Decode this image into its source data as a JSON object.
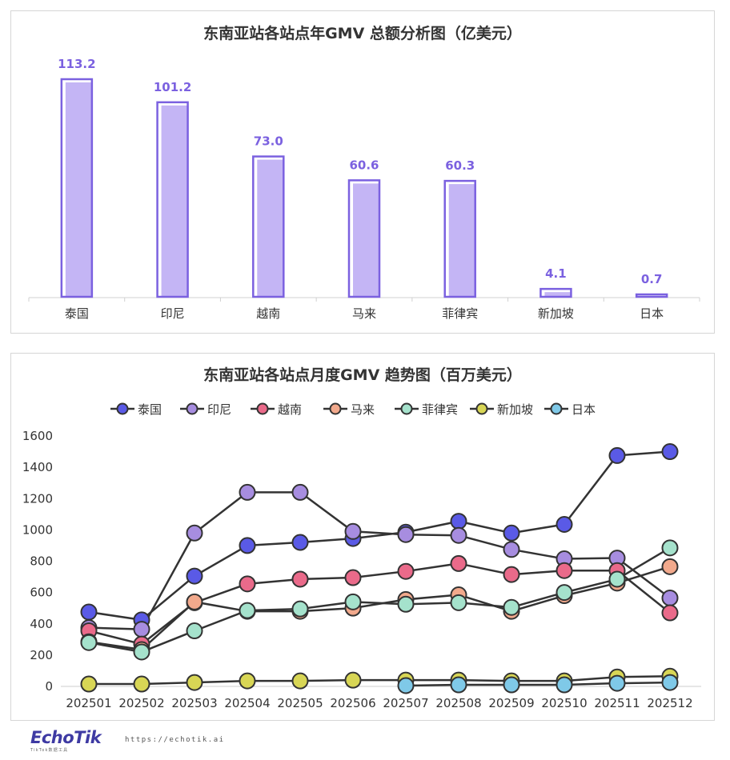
{
  "charts": {
    "bar": {
      "title": "东南亚站各站点年GMV 总额分析图（亿美元）"
    },
    "line": {
      "title": "东南亚站各站点月度GMV 趋势图（百万美元）"
    }
  },
  "chart_data": [
    {
      "type": "bar",
      "title": "东南亚站各站点年GMV 总额分析图（亿美元）",
      "categories": [
        "泰国",
        "印尼",
        "越南",
        "马来",
        "菲律宾",
        "新加坡",
        "日本"
      ],
      "values": [
        113.2,
        101.2,
        73.0,
        60.6,
        60.3,
        4.1,
        0.7
      ],
      "value_labels": [
        "113.2",
        "101.2",
        "73.0",
        "60.6",
        "60.3",
        "4.1",
        "0.7"
      ],
      "ylim": [
        0,
        113.2
      ],
      "grid": false,
      "colors": {
        "fill": "#c4b5f5",
        "stroke": "#7b61e0",
        "label": "#7b61e0"
      }
    },
    {
      "type": "line",
      "title": "东南亚站各站点月度GMV 趋势图（百万美元）",
      "x": [
        "202501",
        "202502",
        "202503",
        "202504",
        "202505",
        "202506",
        "202507",
        "202508",
        "202509",
        "202510",
        "202511",
        "202512"
      ],
      "ylim": [
        0,
        1600
      ],
      "yticks": [
        "0",
        "200",
        "400",
        "600",
        "800",
        "1000",
        "1200",
        "1400",
        "1600"
      ],
      "legend_position": "top",
      "grid": false,
      "series": [
        {
          "name": "泰国",
          "color": "#5a5ae6",
          "values": [
            470,
            420,
            700,
            895,
            915,
            940,
            980,
            1050,
            975,
            1030,
            1470,
            1495
          ]
        },
        {
          "name": "印尼",
          "color": "#a78de0",
          "values": [
            370,
            360,
            975,
            1235,
            1235,
            985,
            965,
            960,
            870,
            810,
            815,
            560
          ]
        },
        {
          "name": "越南",
          "color": "#ea6a8a",
          "values": [
            350,
            265,
            530,
            650,
            680,
            690,
            730,
            780,
            710,
            735,
            735,
            465
          ]
        },
        {
          "name": "马来",
          "color": "#f2a98c",
          "values": [
            280,
            230,
            535,
            475,
            475,
            495,
            550,
            580,
            475,
            575,
            655,
            760
          ]
        },
        {
          "name": "菲律宾",
          "color": "#a5e2cc",
          "values": [
            275,
            215,
            350,
            480,
            490,
            535,
            520,
            530,
            500,
            595,
            680,
            880
          ]
        },
        {
          "name": "新加坡",
          "color": "#d8d655",
          "values": [
            10,
            10,
            20,
            30,
            30,
            35,
            35,
            35,
            30,
            30,
            55,
            60
          ]
        },
        {
          "name": "日本",
          "color": "#7fc9e8",
          "values": [
            null,
            null,
            null,
            null,
            null,
            null,
            0,
            5,
            5,
            5,
            15,
            20
          ]
        }
      ]
    }
  ],
  "footer": {
    "logo": "EchoTik",
    "logo_sub": "TikTok数据工具",
    "url": "https://echotik.ai"
  }
}
